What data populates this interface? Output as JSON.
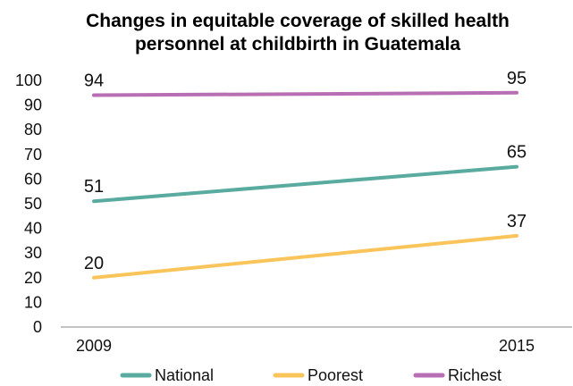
{
  "chart_data": {
    "type": "line",
    "title": "Changes in equitable coverage of skilled health personnel at childbirth in Guatemala",
    "title_lines": [
      "Changes in equitable coverage of skilled health",
      "personnel at childbirth in Guatemala"
    ],
    "categories": [
      "2009",
      "2015"
    ],
    "ylim": [
      0,
      100
    ],
    "yticks": [
      0,
      10,
      20,
      30,
      40,
      50,
      60,
      70,
      80,
      90,
      100
    ],
    "grid": false,
    "legend_position": "bottom",
    "series": [
      {
        "name": "National",
        "values": [
          51,
          65
        ],
        "color": "#5aab9f"
      },
      {
        "name": "Poorest",
        "values": [
          20,
          37
        ],
        "color": "#f9c55b"
      },
      {
        "name": "Richest",
        "values": [
          94,
          95
        ],
        "color": "#b76eb3"
      }
    ]
  }
}
